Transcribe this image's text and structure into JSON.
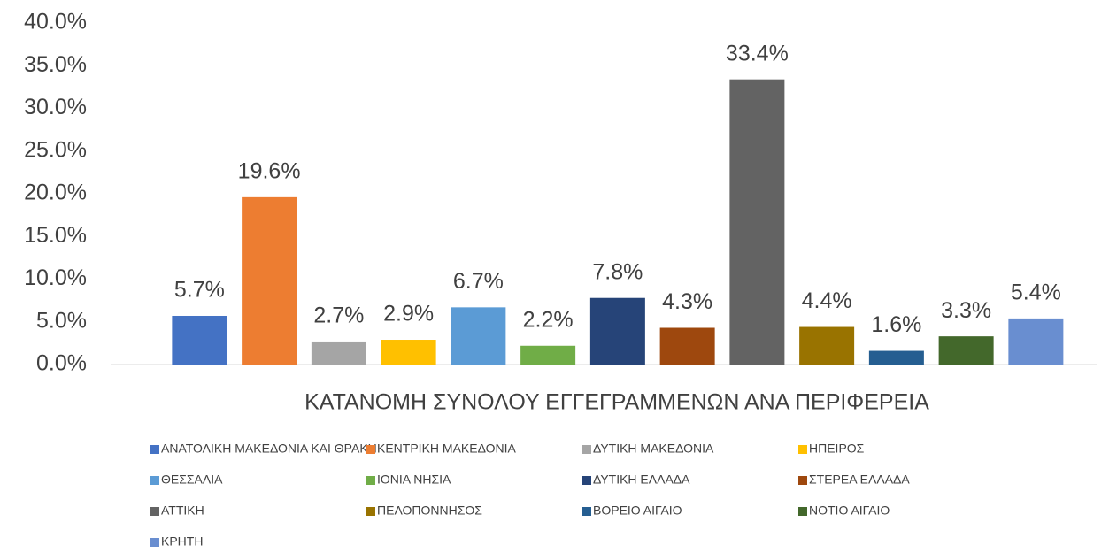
{
  "chart_data": {
    "type": "bar",
    "x_label": "ΚΑΤΑΝΟΜΗ ΣΥΝΟΛΟΥ ΕΓΓΕΓΡΑΜΜΕΝΩΝ  ΑΝΑ ΠΕΡΙΦΕΡΕΙΑ",
    "categories": [
      "ΑΝΑΤΟΛΙΚΗ ΜΑΚΕΔΟΝΙΑ ΚΑΙ ΘΡΑΚΗ",
      "ΚΕΝΤΡΙΚΗ ΜΑΚΕΔΟΝΙΑ",
      "ΔΥΤΙΚΗ ΜΑΚΕΔΟΝΙΑ",
      "ΗΠΕΙΡΟΣ",
      "ΘΕΣΣΑΛΙΑ",
      "ΙΟΝΙΑ ΝΗΣΙΑ",
      "ΔΥΤΙΚΗ ΕΛΛΑΔΑ",
      "ΣΤΕΡΕΑ ΕΛΛΑΔΑ",
      "ΑΤΤΙΚΗ",
      "ΠΕΛΟΠΟΝΝΗΣΟΣ",
      "ΒΟΡΕΙΟ ΑΙΓΑΙΟ",
      "ΝΟΤΙΟ ΑΙΓΑΙΟ",
      "ΚΡΗΤΗ"
    ],
    "values": [
      5.7,
      19.6,
      2.7,
      2.9,
      6.7,
      2.2,
      7.8,
      4.3,
      33.4,
      4.4,
      1.6,
      3.3,
      5.4
    ],
    "value_labels": [
      "5.7%",
      "19.6%",
      "2.7%",
      "2.9%",
      "6.7%",
      "2.2%",
      "7.8%",
      "4.3%",
      "33.4%",
      "4.4%",
      "1.6%",
      "3.3%",
      "5.4%"
    ],
    "colors": [
      "#4472c4",
      "#ed7d31",
      "#a5a5a5",
      "#ffc000",
      "#5b9bd5",
      "#70ad47",
      "#264478",
      "#9e480e",
      "#636363",
      "#997300",
      "#255e91",
      "#43682b",
      "#698ed0"
    ],
    "ylim": [
      0,
      40
    ],
    "yticks": [
      {
        "value": 0,
        "label": "0.0%"
      },
      {
        "value": 5,
        "label": "5.0%"
      },
      {
        "value": 10,
        "label": "10.0%"
      },
      {
        "value": 15,
        "label": "15.0%"
      },
      {
        "value": 20,
        "label": "20.0%"
      },
      {
        "value": 25,
        "label": "25.0%"
      },
      {
        "value": 30,
        "label": "30.0%"
      },
      {
        "value": 35,
        "label": "35.0%"
      },
      {
        "value": 40,
        "label": "40.0%"
      }
    ],
    "grid": false,
    "legend": "bottom"
  }
}
